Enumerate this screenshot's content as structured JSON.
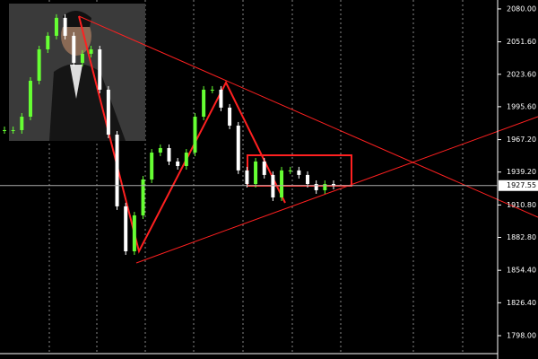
{
  "chart_data": {
    "type": "candlestick",
    "closes": [
      1975.4,
      1975.4,
      1987.0,
      2018.0,
      2045.1,
      2056.8,
      2072.3,
      2056.8,
      2033.5,
      2041.3,
      2045.1,
      2010.3,
      1971.5,
      1909.6,
      1870.8,
      1901.8,
      1932.8,
      1956.0,
      1959.9,
      1948.3,
      1944.4,
      1956.0,
      1987.0,
      2010.3,
      2010.3,
      1994.8,
      1979.3,
      1940.6,
      1928.9,
      1948.3,
      1936.7,
      1917.3,
      1940.6,
      1940.6,
      1936.7,
      1928.9,
      1923.5,
      1928.9,
      1927.4
    ],
    "up_color": "#66ff33",
    "down_color": "#ffffff",
    "ylim": [
      1782.5,
      2087.7
    ],
    "yticks": [
      {
        "value": 2080,
        "label": "2080.00"
      },
      {
        "value": 2051.6,
        "label": "2051.60"
      },
      {
        "value": 2023.6,
        "label": "2023.60"
      },
      {
        "value": 1995.6,
        "label": "1995.60"
      },
      {
        "value": 1967.2,
        "label": "1967.20"
      },
      {
        "value": 1939.2,
        "label": "1939.20"
      },
      {
        "value": 1910.8,
        "label": "1910.80"
      },
      {
        "value": 1882.8,
        "label": "1882.80"
      },
      {
        "value": 1854.4,
        "label": "1854.40"
      },
      {
        "value": 1826.4,
        "label": "1826.40"
      },
      {
        "value": 1798,
        "label": "1798.00"
      }
    ],
    "current_price": 1927.55
  }
}
